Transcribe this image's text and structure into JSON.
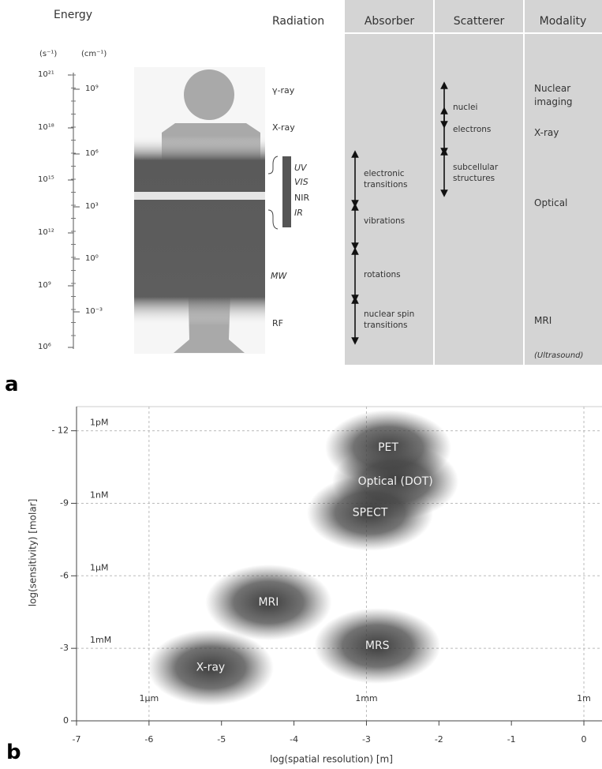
{
  "panel_labels": [
    "a",
    "b"
  ],
  "panel_a": {
    "energy_title": "Energy",
    "unit_s": "(s⁻¹)",
    "unit_cm": "(cm⁻¹)",
    "s_labels": [
      "10²¹",
      "10¹⁸",
      "10¹⁵",
      "10¹²",
      "10⁹",
      "10⁶"
    ],
    "cm_labels": [
      "10⁹",
      "10⁶",
      "10³",
      "10⁰",
      "10⁻³"
    ],
    "radiation_title": "Radiation",
    "radiation": [
      "γ-ray",
      "X-ray",
      "UV",
      "VIS",
      "NIR",
      "IR",
      "MW",
      "RF"
    ],
    "columns": [
      {
        "title": "Absorber",
        "items": [
          "electronic transitions",
          "vibrations",
          "rotations",
          "nuclear spin transitions"
        ]
      },
      {
        "title": "Scatterer",
        "items": [
          "nuclei",
          "electrons",
          "subcellular structures"
        ]
      },
      {
        "title": "Modality",
        "items": [
          "Nuclear imaging",
          "X-ray",
          "Optical",
          "MRI",
          "(Ultrasound)"
        ]
      }
    ]
  },
  "chart_data": {
    "type": "scatter",
    "x_label": "log(spatial resolution) [m]",
    "y_label": "log(sensitivity) [molar]",
    "xlim": [
      -7,
      0.25
    ],
    "ylim": [
      0,
      -13
    ],
    "xticks": [
      -7,
      -6,
      -5,
      -4,
      -3,
      -2,
      -1,
      0
    ],
    "yticks": [
      0,
      -3,
      -6,
      -9,
      {
        "value": -12,
        "label": "- 12"
      }
    ],
    "reference_lines_y": [
      {
        "value": -12,
        "label": "1pM"
      },
      {
        "value": -9,
        "label": "1nM"
      },
      {
        "value": -6,
        "label": "1µM"
      },
      {
        "value": -3,
        "label": "1mM"
      }
    ],
    "reference_lines_x": [
      {
        "value": -6,
        "label": "1µm"
      },
      {
        "value": -3,
        "label": "1mm"
      },
      {
        "value": 0,
        "label": "1m"
      }
    ],
    "point_labels": [
      "PET",
      "Optical (DOT)",
      "SPECT",
      "MRI",
      "MRS",
      "X-ray"
    ],
    "x": [
      -2.7,
      -2.6,
      -2.95,
      -4.35,
      -2.85,
      -5.15
    ],
    "values": [
      -11.3,
      -9.9,
      -8.6,
      -4.9,
      -3.1,
      -2.2
    ],
    "color": "#3a3a3a",
    "grid": true
  }
}
